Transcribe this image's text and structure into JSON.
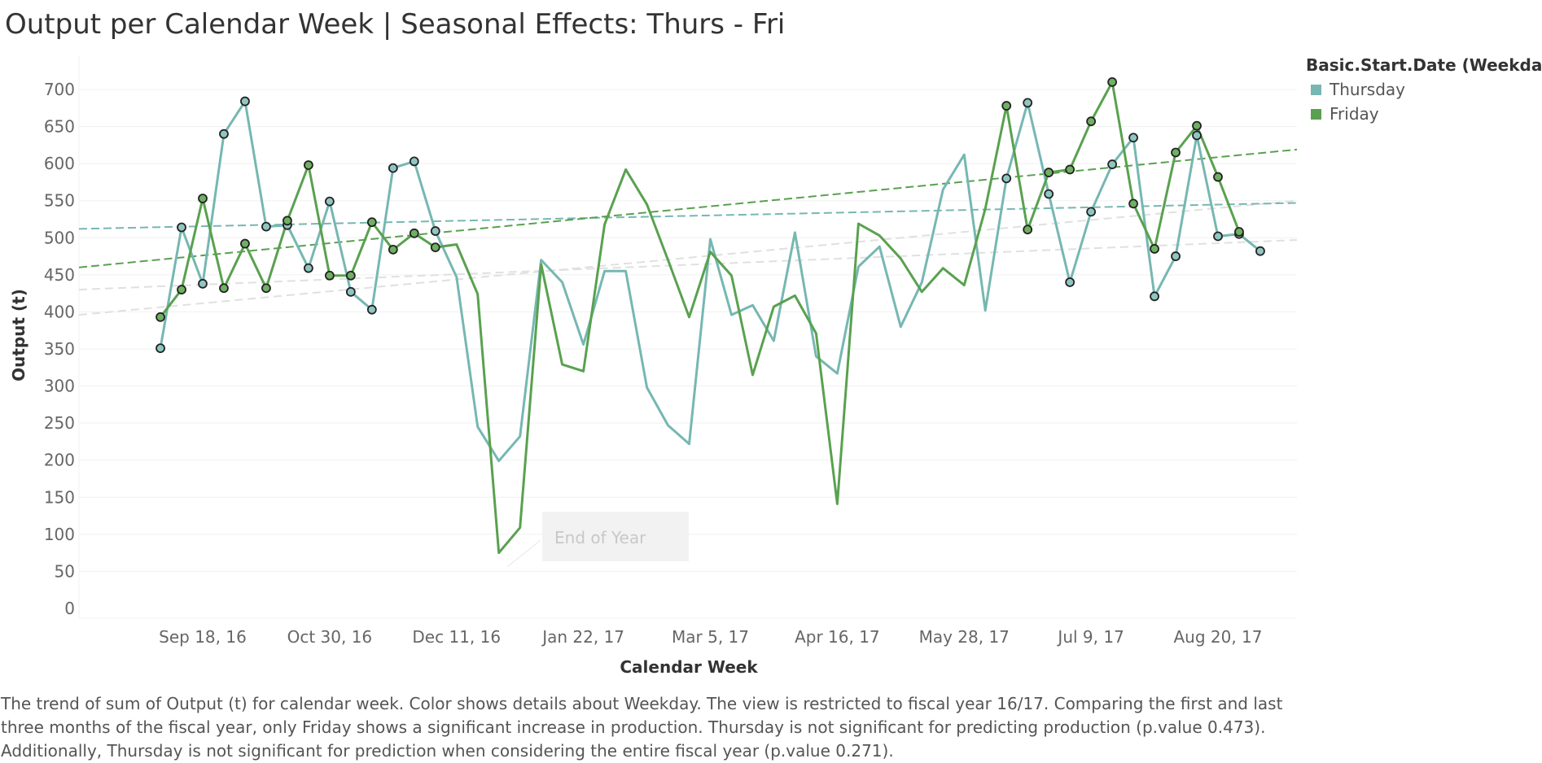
{
  "title": "Output per Calendar Week | Seasonal Effects: Thurs - Fri",
  "legend": {
    "title": "Basic.Start.Date (Weekdays)",
    "items": [
      {
        "label": "Thursday",
        "color": "#76b7b2"
      },
      {
        "label": "Friday",
        "color": "#59a14f"
      }
    ]
  },
  "caption": [
    "The trend of sum of Output (t) for calendar week.  Color shows details about Weekday. The view is restricted to fiscal year 16/17. Comparing the first and last",
    "three months of the fiscal year, only Friday shows a significant increase in production. Thursday is not significant for predicting production (p.value 0.473).",
    "Additionally, Thursday is not significant for prediction when considering the entire fiscal year (p.value 0.271)."
  ],
  "chart_data": {
    "type": "line",
    "xlabel": "Calendar Week",
    "ylabel": "Output (t)",
    "ylim": [
      0,
      720
    ],
    "yticks": [
      0,
      50,
      100,
      150,
      200,
      250,
      300,
      350,
      400,
      450,
      500,
      550,
      600,
      650,
      700
    ],
    "xlim": [
      "2016-08-29",
      "2017-09-18"
    ],
    "xticks": [
      {
        "date": "2016-09-18",
        "label": "Sep 18, 16"
      },
      {
        "date": "2016-10-30",
        "label": "Oct 30, 16"
      },
      {
        "date": "2016-12-11",
        "label": "Dec 11, 16"
      },
      {
        "date": "2017-01-22",
        "label": "Jan 22, 17"
      },
      {
        "date": "2017-03-05",
        "label": "Mar 5, 17"
      },
      {
        "date": "2017-04-16",
        "label": "Apr 16, 17"
      },
      {
        "date": "2017-05-28",
        "label": "May 28, 17"
      },
      {
        "date": "2017-07-09",
        "label": "Jul 9, 17"
      },
      {
        "date": "2017-08-20",
        "label": "Aug 20, 17"
      }
    ],
    "series": [
      {
        "name": "Thursday",
        "color": "#76b7b2",
        "dot_color": "#8fc6c1",
        "points": [
          {
            "x": "2016-09-04",
            "y": 351,
            "marker": true
          },
          {
            "x": "2016-09-11",
            "y": 514,
            "marker": true
          },
          {
            "x": "2016-09-18",
            "y": 438,
            "marker": true
          },
          {
            "x": "2016-09-25",
            "y": 640,
            "marker": true
          },
          {
            "x": "2016-10-02",
            "y": 684,
            "marker": true
          },
          {
            "x": "2016-10-09",
            "y": 515,
            "marker": true
          },
          {
            "x": "2016-10-16",
            "y": 517,
            "marker": true
          },
          {
            "x": "2016-10-23",
            "y": 459,
            "marker": true
          },
          {
            "x": "2016-10-30",
            "y": 549,
            "marker": true
          },
          {
            "x": "2016-11-06",
            "y": 427,
            "marker": true
          },
          {
            "x": "2016-11-13",
            "y": 403,
            "marker": true
          },
          {
            "x": "2016-11-20",
            "y": 594,
            "marker": true
          },
          {
            "x": "2016-11-27",
            "y": 603,
            "marker": true
          },
          {
            "x": "2016-12-04",
            "y": 509,
            "marker": true
          },
          {
            "x": "2016-12-11",
            "y": 447,
            "marker": false
          },
          {
            "x": "2016-12-18",
            "y": 245,
            "marker": false
          },
          {
            "x": "2016-12-25",
            "y": 199,
            "marker": false
          },
          {
            "x": "2017-01-01",
            "y": 232,
            "marker": false
          },
          {
            "x": "2017-01-08",
            "y": 470,
            "marker": false
          },
          {
            "x": "2017-01-15",
            "y": 440,
            "marker": false
          },
          {
            "x": "2017-01-22",
            "y": 356,
            "marker": false
          },
          {
            "x": "2017-01-29",
            "y": 455,
            "marker": false
          },
          {
            "x": "2017-02-05",
            "y": 455,
            "marker": false
          },
          {
            "x": "2017-02-12",
            "y": 298,
            "marker": false
          },
          {
            "x": "2017-02-19",
            "y": 247,
            "marker": false
          },
          {
            "x": "2017-02-26",
            "y": 222,
            "marker": false
          },
          {
            "x": "2017-03-05",
            "y": 498,
            "marker": false
          },
          {
            "x": "2017-03-12",
            "y": 396,
            "marker": false
          },
          {
            "x": "2017-03-19",
            "y": 409,
            "marker": false
          },
          {
            "x": "2017-03-26",
            "y": 361,
            "marker": false
          },
          {
            "x": "2017-04-02",
            "y": 507,
            "marker": false
          },
          {
            "x": "2017-04-09",
            "y": 340,
            "marker": false
          },
          {
            "x": "2017-04-16",
            "y": 317,
            "marker": false
          },
          {
            "x": "2017-04-23",
            "y": 461,
            "marker": false
          },
          {
            "x": "2017-04-30",
            "y": 488,
            "marker": false
          },
          {
            "x": "2017-05-07",
            "y": 380,
            "marker": false
          },
          {
            "x": "2017-05-14",
            "y": 440,
            "marker": false
          },
          {
            "x": "2017-05-21",
            "y": 565,
            "marker": false
          },
          {
            "x": "2017-05-28",
            "y": 612,
            "marker": false
          },
          {
            "x": "2017-06-04",
            "y": 402,
            "marker": false
          },
          {
            "x": "2017-06-11",
            "y": 580,
            "marker": true
          },
          {
            "x": "2017-06-18",
            "y": 682,
            "marker": true
          },
          {
            "x": "2017-06-25",
            "y": 559,
            "marker": true
          },
          {
            "x": "2017-07-02",
            "y": 440,
            "marker": true
          },
          {
            "x": "2017-07-09",
            "y": 535,
            "marker": true
          },
          {
            "x": "2017-07-16",
            "y": 599,
            "marker": true
          },
          {
            "x": "2017-07-23",
            "y": 635,
            "marker": true
          },
          {
            "x": "2017-07-30",
            "y": 421,
            "marker": true
          },
          {
            "x": "2017-08-06",
            "y": 475,
            "marker": true
          },
          {
            "x": "2017-08-13",
            "y": 638,
            "marker": true
          },
          {
            "x": "2017-08-20",
            "y": 502,
            "marker": true
          },
          {
            "x": "2017-08-27",
            "y": 505,
            "marker": true
          },
          {
            "x": "2017-09-03",
            "y": 482,
            "marker": true
          }
        ],
        "trend": {
          "start": 512,
          "end": 547,
          "color": "#76b7b2"
        }
      },
      {
        "name": "Friday",
        "color": "#59a14f",
        "dot_color": "#6fb062",
        "points": [
          {
            "x": "2016-09-04",
            "y": 393,
            "marker": true
          },
          {
            "x": "2016-09-11",
            "y": 430,
            "marker": true
          },
          {
            "x": "2016-09-18",
            "y": 553,
            "marker": true
          },
          {
            "x": "2016-09-25",
            "y": 432,
            "marker": true
          },
          {
            "x": "2016-10-02",
            "y": 492,
            "marker": true
          },
          {
            "x": "2016-10-09",
            "y": 432,
            "marker": true
          },
          {
            "x": "2016-10-16",
            "y": 523,
            "marker": true
          },
          {
            "x": "2016-10-23",
            "y": 598,
            "marker": true
          },
          {
            "x": "2016-10-30",
            "y": 449,
            "marker": true
          },
          {
            "x": "2016-11-06",
            "y": 449,
            "marker": true
          },
          {
            "x": "2016-11-13",
            "y": 521,
            "marker": true
          },
          {
            "x": "2016-11-20",
            "y": 484,
            "marker": true
          },
          {
            "x": "2016-11-27",
            "y": 506,
            "marker": true
          },
          {
            "x": "2016-12-04",
            "y": 487,
            "marker": true
          },
          {
            "x": "2016-12-11",
            "y": 491,
            "marker": false
          },
          {
            "x": "2016-12-18",
            "y": 424,
            "marker": false
          },
          {
            "x": "2016-12-25",
            "y": 75,
            "marker": false
          },
          {
            "x": "2017-01-01",
            "y": 109,
            "marker": false
          },
          {
            "x": "2017-01-08",
            "y": 464,
            "marker": false
          },
          {
            "x": "2017-01-15",
            "y": 329,
            "marker": false
          },
          {
            "x": "2017-01-22",
            "y": 320,
            "marker": false
          },
          {
            "x": "2017-01-29",
            "y": 518,
            "marker": false
          },
          {
            "x": "2017-02-05",
            "y": 592,
            "marker": false
          },
          {
            "x": "2017-02-12",
            "y": 545,
            "marker": false
          },
          {
            "x": "2017-02-19",
            "y": 470,
            "marker": false
          },
          {
            "x": "2017-02-26",
            "y": 393,
            "marker": false
          },
          {
            "x": "2017-03-05",
            "y": 481,
            "marker": false
          },
          {
            "x": "2017-03-12",
            "y": 449,
            "marker": false
          },
          {
            "x": "2017-03-19",
            "y": 315,
            "marker": false
          },
          {
            "x": "2017-03-26",
            "y": 407,
            "marker": false
          },
          {
            "x": "2017-04-02",
            "y": 422,
            "marker": false
          },
          {
            "x": "2017-04-09",
            "y": 371,
            "marker": false
          },
          {
            "x": "2017-04-16",
            "y": 141,
            "marker": false
          },
          {
            "x": "2017-04-23",
            "y": 519,
            "marker": false
          },
          {
            "x": "2017-04-30",
            "y": 503,
            "marker": false
          },
          {
            "x": "2017-05-07",
            "y": 472,
            "marker": false
          },
          {
            "x": "2017-05-14",
            "y": 427,
            "marker": false
          },
          {
            "x": "2017-05-21",
            "y": 459,
            "marker": false
          },
          {
            "x": "2017-05-28",
            "y": 436,
            "marker": false
          },
          {
            "x": "2017-06-04",
            "y": 539,
            "marker": false
          },
          {
            "x": "2017-06-11",
            "y": 678,
            "marker": true
          },
          {
            "x": "2017-06-18",
            "y": 511,
            "marker": true
          },
          {
            "x": "2017-06-25",
            "y": 588,
            "marker": true
          },
          {
            "x": "2017-07-02",
            "y": 592,
            "marker": true
          },
          {
            "x": "2017-07-09",
            "y": 657,
            "marker": true
          },
          {
            "x": "2017-07-16",
            "y": 710,
            "marker": true
          },
          {
            "x": "2017-07-23",
            "y": 546,
            "marker": true
          },
          {
            "x": "2017-07-30",
            "y": 485,
            "marker": true
          },
          {
            "x": "2017-08-06",
            "y": 615,
            "marker": true
          },
          {
            "x": "2017-08-13",
            "y": 651,
            "marker": true
          },
          {
            "x": "2017-08-20",
            "y": 582,
            "marker": true
          },
          {
            "x": "2017-08-27",
            "y": 508,
            "marker": true
          }
        ],
        "trend": {
          "start": 460,
          "end": 619,
          "color": "#59a14f"
        }
      }
    ],
    "faint_trends": [
      {
        "start": 396,
        "end": 550
      },
      {
        "start": 430,
        "end": 497
      }
    ],
    "annotation": {
      "text": "End of Year",
      "x": "2016-12-25",
      "y": 75
    }
  }
}
